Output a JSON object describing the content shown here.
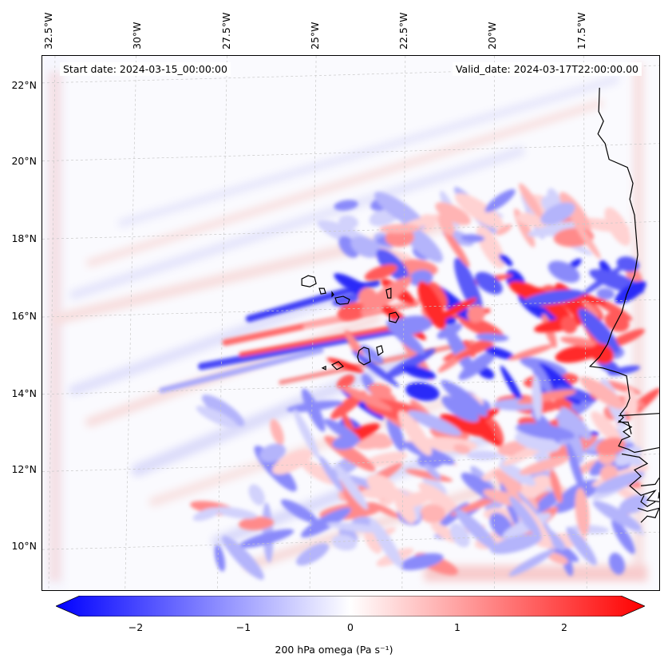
{
  "header": {
    "start_date": "Start date: 2024-03-15_00:00:00",
    "valid_date": "Valid_date: 2024-03-17T22:00:00.00"
  },
  "axes": {
    "lon_labels": [
      "32.5°W",
      "30°W",
      "27.5°W",
      "25°W",
      "22.5°W",
      "20°W",
      "17.5°W"
    ],
    "lat_labels": [
      "22°N",
      "20°N",
      "18°N",
      "16°N",
      "14°N",
      "12°N",
      "10°N"
    ]
  },
  "colorbar": {
    "title": "200 hPa omega (Pa s⁻¹)",
    "ticks": [
      "−2",
      "−1",
      "0",
      "1",
      "2"
    ],
    "range": [
      -2.6,
      2.6
    ],
    "colormap": "bwr",
    "low_color": "#0000ff",
    "mid_color": "#ffffff",
    "high_color": "#ff0000"
  },
  "map": {
    "projection": "lambert-conformal",
    "lon_range_deg": [
      -33.5,
      -15.0
    ],
    "lat_range_deg": [
      8.8,
      22.8
    ],
    "features": [
      "coastline-west-africa",
      "cape-verde-islands"
    ],
    "gridlines": true
  }
}
